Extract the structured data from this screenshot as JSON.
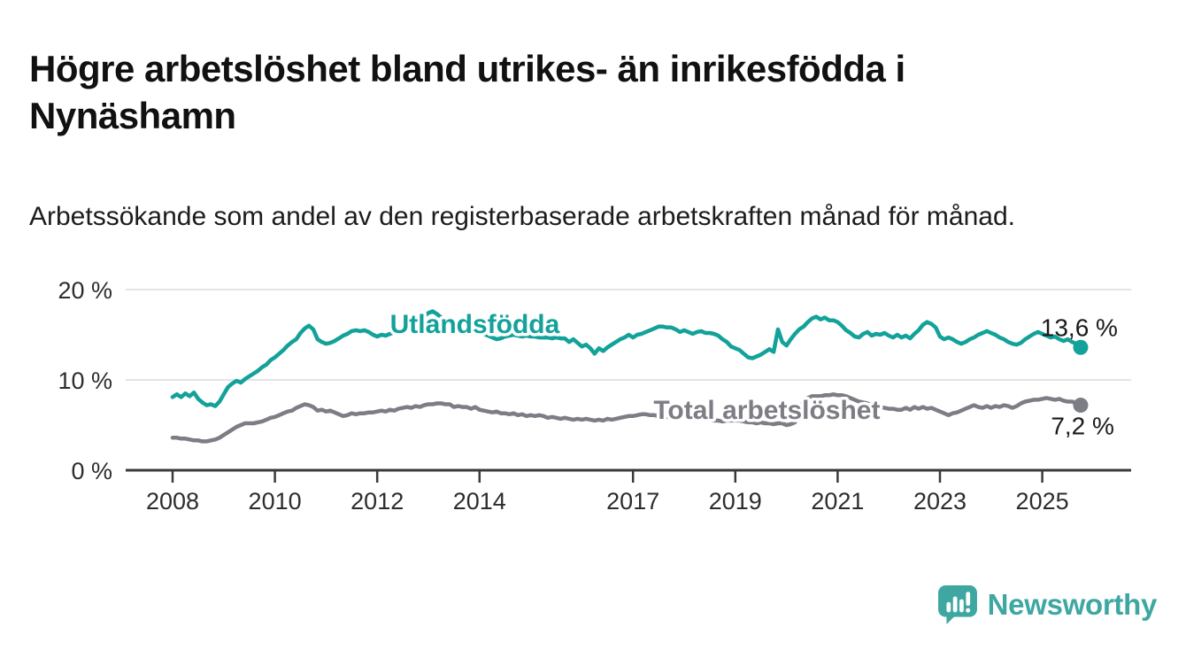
{
  "chart_data": {
    "type": "line",
    "title": "Högre arbetslöshet bland utrikes- än inrikesfödda i Nynäshamn",
    "subtitle": "Arbetssökande som andel av den registerbaserade arbetskraften månad för månad.",
    "x_axis": {
      "ticks": [
        2008,
        2010,
        2012,
        2014,
        2017,
        2019,
        2021,
        2023,
        2025
      ],
      "start_year": 2008,
      "frequency": "monthly",
      "end": "2025-10"
    },
    "y_axis": {
      "ticks": [
        {
          "value": 20,
          "label": "20 %"
        },
        {
          "value": 10,
          "label": "10 %"
        },
        {
          "value": 0,
          "label": "0 %"
        }
      ],
      "range": [
        0,
        21.5
      ],
      "grid": true
    },
    "legend_position": "inline-labels",
    "series": [
      {
        "name": "Utlandsfödda",
        "color": "#13a29a",
        "end_label": "13,6 %",
        "end_value": 13.6,
        "label_at": {
          "year": 2012.25,
          "value": 15.2
        },
        "label_font_size": 30,
        "values": [
          8.1,
          8.4,
          8.1,
          8.5,
          8.2,
          8.6,
          7.9,
          7.5,
          7.2,
          7.3,
          7.1,
          7.6,
          8.4,
          9.2,
          9.6,
          9.9,
          9.7,
          10.1,
          10.4,
          10.7,
          11.0,
          11.4,
          11.7,
          12.2,
          12.5,
          12.9,
          13.3,
          13.8,
          14.2,
          14.5,
          15.2,
          15.7,
          16.0,
          15.6,
          14.5,
          14.2,
          14.0,
          14.1,
          14.3,
          14.6,
          14.9,
          15.1,
          15.4,
          15.5,
          15.4,
          15.5,
          15.3,
          15.0,
          14.8,
          15.0,
          14.9,
          15.1,
          15.3,
          15.1,
          15.3,
          15.6,
          15.9,
          16.3,
          16.7,
          17.1,
          17.4,
          17.6,
          17.3,
          16.9,
          16.5,
          16.1,
          15.8,
          15.5,
          15.3,
          15.4,
          15.2,
          15.4,
          15.3,
          15.1,
          14.9,
          14.7,
          14.5,
          14.6,
          14.8,
          14.9,
          15.0,
          14.9,
          14.8,
          14.9,
          14.8,
          14.8,
          14.7,
          14.7,
          14.7,
          14.6,
          14.7,
          14.6,
          14.6,
          14.2,
          14.5,
          14.1,
          13.7,
          13.9,
          13.5,
          12.9,
          13.5,
          13.2,
          13.6,
          13.9,
          14.2,
          14.5,
          14.7,
          15.0,
          14.7,
          15.0,
          15.1,
          15.3,
          15.5,
          15.7,
          15.9,
          15.9,
          15.8,
          15.8,
          15.6,
          15.3,
          15.5,
          15.3,
          15.1,
          15.3,
          15.4,
          15.2,
          15.2,
          15.1,
          14.9,
          14.5,
          14.2,
          13.7,
          13.5,
          13.3,
          12.9,
          12.5,
          12.4,
          12.6,
          12.8,
          13.1,
          13.4,
          13.1,
          15.6,
          14.2,
          13.8,
          14.5,
          15.1,
          15.6,
          15.9,
          16.4,
          16.8,
          17.0,
          16.7,
          16.9,
          16.6,
          16.6,
          16.4,
          16.0,
          15.5,
          15.2,
          14.8,
          14.7,
          15.1,
          15.3,
          14.9,
          15.1,
          15.0,
          15.2,
          14.9,
          14.7,
          15.0,
          14.7,
          14.9,
          14.6,
          15.1,
          15.5,
          16.1,
          16.4,
          16.2,
          15.8,
          14.8,
          14.5,
          14.7,
          14.5,
          14.2,
          14.0,
          14.2,
          14.5,
          14.7,
          15.0,
          15.2,
          15.4,
          15.2,
          15.0,
          14.7,
          14.5,
          14.2,
          14.0,
          13.9,
          14.1,
          14.5,
          14.8,
          15.1,
          15.3,
          15.1,
          14.9,
          14.7,
          14.8,
          14.5,
          14.3,
          14.5,
          14.2,
          14.0,
          13.6
        ]
      },
      {
        "name": "Total arbetslöshet",
        "color": "#7d7d85",
        "end_label": "7,2 %",
        "end_value": 7.2,
        "label_at": {
          "year": 2017.4,
          "value": 5.7
        },
        "label_font_size": 28,
        "values": [
          3.6,
          3.6,
          3.5,
          3.5,
          3.4,
          3.3,
          3.3,
          3.2,
          3.2,
          3.3,
          3.4,
          3.6,
          3.9,
          4.2,
          4.5,
          4.8,
          5.0,
          5.2,
          5.2,
          5.2,
          5.3,
          5.4,
          5.6,
          5.8,
          5.9,
          6.1,
          6.3,
          6.5,
          6.6,
          6.9,
          7.1,
          7.3,
          7.2,
          7.0,
          6.6,
          6.7,
          6.5,
          6.6,
          6.4,
          6.2,
          6.0,
          6.1,
          6.3,
          6.2,
          6.3,
          6.3,
          6.4,
          6.4,
          6.5,
          6.6,
          6.5,
          6.7,
          6.6,
          6.8,
          6.9,
          7.0,
          6.9,
          7.1,
          7.0,
          7.2,
          7.3,
          7.3,
          7.4,
          7.4,
          7.3,
          7.3,
          7.0,
          7.1,
          7.0,
          7.0,
          6.8,
          7.0,
          6.7,
          6.6,
          6.5,
          6.4,
          6.5,
          6.3,
          6.3,
          6.2,
          6.3,
          6.1,
          6.2,
          6.0,
          6.1,
          6.0,
          6.1,
          6.0,
          5.8,
          5.9,
          5.8,
          5.7,
          5.8,
          5.7,
          5.6,
          5.7,
          5.6,
          5.7,
          5.6,
          5.5,
          5.6,
          5.5,
          5.7,
          5.6,
          5.7,
          5.8,
          5.9,
          6.0,
          6.0,
          6.1,
          6.2,
          6.2,
          6.1,
          6.1,
          6.0,
          6.0,
          5.9,
          6.0,
          5.9,
          6.0,
          5.9,
          5.9,
          5.8,
          5.7,
          5.7,
          5.6,
          5.6,
          5.5,
          5.5,
          5.4,
          5.5,
          5.5,
          5.5,
          5.5,
          5.4,
          5.3,
          5.3,
          5.2,
          5.3,
          5.2,
          5.2,
          5.1,
          5.2,
          5.2,
          5.0,
          5.1,
          5.3,
          6.6,
          7.7,
          8.0,
          8.2,
          8.2,
          8.2,
          8.3,
          8.3,
          8.4,
          8.3,
          8.3,
          8.2,
          8.0,
          7.8,
          7.6,
          7.5,
          7.4,
          7.2,
          7.1,
          7.0,
          6.9,
          6.8,
          6.8,
          6.7,
          6.7,
          6.9,
          6.7,
          7.0,
          6.8,
          7.0,
          6.8,
          6.9,
          6.7,
          6.5,
          6.3,
          6.1,
          6.3,
          6.4,
          6.6,
          6.8,
          7.0,
          7.2,
          7.0,
          6.9,
          7.1,
          6.9,
          7.1,
          7.0,
          7.2,
          7.1,
          6.9,
          7.1,
          7.4,
          7.6,
          7.7,
          7.8,
          7.8,
          7.9,
          8.0,
          7.9,
          7.8,
          7.9,
          7.7,
          7.6,
          7.6,
          7.4,
          7.2
        ]
      }
    ]
  },
  "footer": {
    "brand": "Newsworthy"
  },
  "colors": {
    "brand": "#3fa7a2",
    "axis": "#3a3a3a",
    "grid": "#dcdcdc",
    "text": "#111111",
    "tick_text": "#2d2d2d"
  }
}
